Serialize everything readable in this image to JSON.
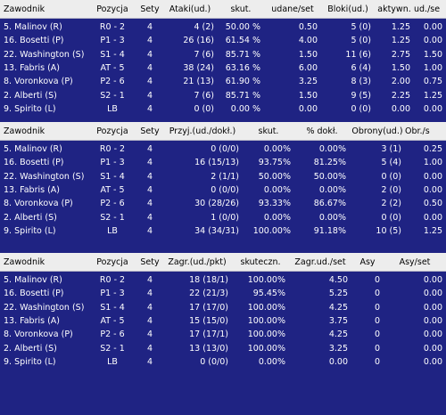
{
  "table1": {
    "headers": [
      "Zawodnik",
      "Pozycja",
      "Sety",
      "Ataki(ud.)",
      "skut.",
      "udane/set",
      "Bloki(ud.)",
      "aktywn.",
      "ud./se"
    ],
    "rows": [
      [
        "5. Malinov (R)",
        "R0 - 2",
        "4",
        "4 (2)",
        "50.00 %",
        "0.50",
        "5 (0)",
        "1.25",
        "0.00"
      ],
      [
        "16. Bosetti (P)",
        "P1 - 3",
        "4",
        "26 (16)",
        "61.54 %",
        "4.00",
        "5 (0)",
        "1.25",
        "0.00"
      ],
      [
        "22. Washington (S)",
        "S1 - 4",
        "4",
        "7 (6)",
        "85.71 %",
        "1.50",
        "11 (6)",
        "2.75",
        "1.50"
      ],
      [
        "13. Fabris (A)",
        "AT - 5",
        "4",
        "38 (24)",
        "63.16 %",
        "6.00",
        "6 (4)",
        "1.50",
        "1.00"
      ],
      [
        "8. Voronkova (P)",
        "P2 - 6",
        "4",
        "21 (13)",
        "61.90 %",
        "3.25",
        "8 (3)",
        "2.00",
        "0.75"
      ],
      [
        "2. Alberti (S)",
        "S2 - 1",
        "4",
        "7 (6)",
        "85.71 %",
        "1.50",
        "9 (5)",
        "2.25",
        "1.25"
      ],
      [
        "9. Spirito (L)",
        "LB",
        "4",
        "0 (0)",
        "0.00 %",
        "0.00",
        "0 (0)",
        "0.00",
        "0.00"
      ]
    ]
  },
  "table2": {
    "headers": [
      "Zawodnik",
      "Pozycja",
      "Sety",
      "Przyj.(ud./dokł.)",
      "skut.",
      "% dokł.",
      "Obrony(ud.)",
      "Obr./s"
    ],
    "rows": [
      [
        "5. Malinov (R)",
        "R0 - 2",
        "4",
        "0 (0/0)",
        "0.00%",
        "0.00%",
        "3 (1)",
        "0.25"
      ],
      [
        "16. Bosetti (P)",
        "P1 - 3",
        "4",
        "16 (15/13)",
        "93.75%",
        "81.25%",
        "5 (4)",
        "1.00"
      ],
      [
        "22. Washington (S)",
        "S1 - 4",
        "4",
        "2 (1/1)",
        "50.00%",
        "50.00%",
        "0 (0)",
        "0.00"
      ],
      [
        "13. Fabris (A)",
        "AT - 5",
        "4",
        "0 (0/0)",
        "0.00%",
        "0.00%",
        "2 (0)",
        "0.00"
      ],
      [
        "8. Voronkova (P)",
        "P2 - 6",
        "4",
        "30 (28/26)",
        "93.33%",
        "86.67%",
        "2 (2)",
        "0.50"
      ],
      [
        "2. Alberti (S)",
        "S2 - 1",
        "4",
        "1 (0/0)",
        "0.00%",
        "0.00%",
        "0 (0)",
        "0.00"
      ],
      [
        "9. Spirito (L)",
        "LB",
        "4",
        "34 (34/31)",
        "100.00%",
        "91.18%",
        "10 (5)",
        "1.25"
      ]
    ]
  },
  "table3": {
    "headers": [
      "Zawodnik",
      "Pozycja",
      "Sety",
      "Zagr.(ud./pkt)",
      "skuteczn.",
      "Zagr.ud./set",
      "Asy",
      "Asy/set"
    ],
    "rows": [
      [
        "5. Malinov (R)",
        "R0 - 2",
        "4",
        "18 (18/1)",
        "100.00%",
        "4.50",
        "0",
        "0.00"
      ],
      [
        "16. Bosetti (P)",
        "P1 - 3",
        "4",
        "22 (21/3)",
        "95.45%",
        "5.25",
        "0",
        "0.00"
      ],
      [
        "22. Washington (S)",
        "S1 - 4",
        "4",
        "17 (17/0)",
        "100.00%",
        "4.25",
        "0",
        "0.00"
      ],
      [
        "13. Fabris (A)",
        "AT - 5",
        "4",
        "15 (15/0)",
        "100.00%",
        "3.75",
        "0",
        "0.00"
      ],
      [
        "8. Voronkova (P)",
        "P2 - 6",
        "4",
        "17 (17/1)",
        "100.00%",
        "4.25",
        "0",
        "0.00"
      ],
      [
        "2. Alberti (S)",
        "S2 - 1",
        "4",
        "13 (13/0)",
        "100.00%",
        "3.25",
        "0",
        "0.00"
      ],
      [
        "9. Spirito (L)",
        "LB",
        "4",
        "0 (0/0)",
        "0.00%",
        "0.00",
        "0",
        "0.00"
      ]
    ]
  }
}
